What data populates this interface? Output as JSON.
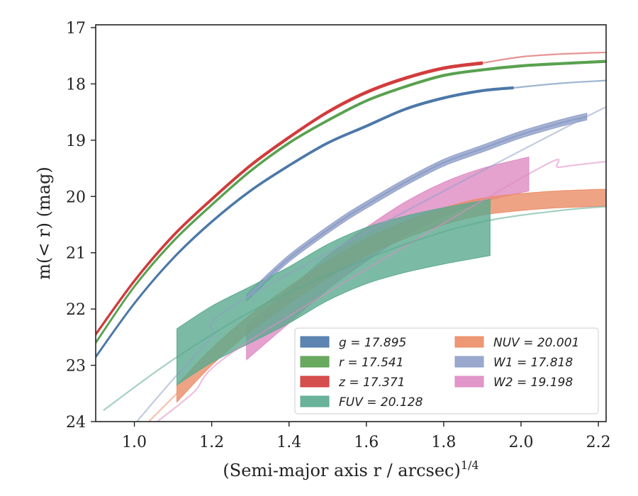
{
  "chart_data": {
    "type": "line",
    "xlabel": "(Semi-major axis r / arcsec)",
    "xlabel_exponent": "1/4",
    "ylabel": "m(< r) (mag)",
    "xlim": [
      0.9,
      2.22
    ],
    "ylim": [
      24,
      16.95
    ],
    "y_inverted": true,
    "x_ticks": [
      1.0,
      1.2,
      1.4,
      1.6,
      1.8,
      2.0,
      2.2
    ],
    "x_tick_labels": [
      "1.0",
      "1.2",
      "1.4",
      "1.6",
      "1.8",
      "2.0",
      "2.2"
    ],
    "y_ticks": [
      17,
      18,
      19,
      20,
      21,
      22,
      23,
      24
    ],
    "y_tick_labels": [
      "17",
      "18",
      "19",
      "20",
      "21",
      "22",
      "23",
      "24"
    ],
    "grid": false,
    "legend_placement": "lower-right",
    "series": [
      {
        "name": "g = 17.895",
        "legend_var": "g",
        "legend_value": "17.895",
        "color": "#4c78a8",
        "measured": [
          [
            0.9,
            22.85
          ],
          [
            1.0,
            21.9
          ],
          [
            1.1,
            21.1
          ],
          [
            1.2,
            20.45
          ],
          [
            1.3,
            19.9
          ],
          [
            1.4,
            19.45
          ],
          [
            1.5,
            19.05
          ],
          [
            1.6,
            18.75
          ],
          [
            1.7,
            18.45
          ],
          [
            1.8,
            18.25
          ],
          [
            1.9,
            18.12
          ],
          [
            1.98,
            18.07
          ]
        ],
        "model": [
          [
            1.98,
            18.07
          ],
          [
            2.1,
            17.99
          ],
          [
            2.22,
            17.94
          ]
        ],
        "halfwidth": 0.02
      },
      {
        "name": "r = 17.541",
        "legend_var": "r",
        "legend_value": "17.541",
        "color": "#59a14f",
        "measured": [
          [
            0.9,
            22.6
          ],
          [
            1.0,
            21.6
          ],
          [
            1.1,
            20.8
          ],
          [
            1.2,
            20.15
          ],
          [
            1.3,
            19.55
          ],
          [
            1.4,
            19.05
          ],
          [
            1.5,
            18.65
          ],
          [
            1.6,
            18.3
          ],
          [
            1.7,
            18.05
          ],
          [
            1.8,
            17.85
          ],
          [
            1.9,
            17.75
          ],
          [
            2.0,
            17.68
          ],
          [
            2.1,
            17.64
          ],
          [
            2.22,
            17.6
          ]
        ],
        "model": [
          [
            2.1,
            17.64
          ],
          [
            2.22,
            17.6
          ]
        ],
        "halfwidth": 0.02
      },
      {
        "name": "z = 17.371",
        "legend_var": "z",
        "legend_value": "17.371",
        "color": "#d13b3b",
        "measured": [
          [
            0.9,
            22.45
          ],
          [
            1.0,
            21.5
          ],
          [
            1.1,
            20.7
          ],
          [
            1.2,
            20.05
          ],
          [
            1.3,
            19.45
          ],
          [
            1.4,
            18.95
          ],
          [
            1.5,
            18.5
          ],
          [
            1.6,
            18.15
          ],
          [
            1.7,
            17.9
          ],
          [
            1.8,
            17.72
          ],
          [
            1.9,
            17.63
          ]
        ],
        "model": [
          [
            1.9,
            17.63
          ],
          [
            2.0,
            17.52
          ],
          [
            2.1,
            17.47
          ],
          [
            2.22,
            17.44
          ]
        ],
        "halfwidth": 0.025
      },
      {
        "name": "FUV = 20.128",
        "legend_var": "FUV",
        "legend_value": "20.128",
        "color": "#5aaa8f",
        "measured": [
          [
            1.11,
            22.85
          ],
          [
            1.2,
            22.45
          ],
          [
            1.3,
            22.1
          ],
          [
            1.4,
            21.75
          ],
          [
            1.5,
            21.35
          ],
          [
            1.6,
            21.05
          ],
          [
            1.7,
            20.85
          ],
          [
            1.8,
            20.7
          ],
          [
            1.92,
            20.55
          ]
        ],
        "model": [
          [
            0.92,
            23.8
          ],
          [
            1.1,
            22.9
          ],
          [
            1.3,
            22.05
          ],
          [
            1.5,
            21.4
          ],
          [
            1.7,
            20.85
          ],
          [
            1.9,
            20.45
          ],
          [
            2.1,
            20.25
          ],
          [
            2.22,
            20.18
          ]
        ],
        "halfwidth": 0.5
      },
      {
        "name": "NUV = 20.001",
        "legend_var": "NUV",
        "legend_value": "20.001",
        "color": "#eb8c66",
        "measured": [
          [
            1.11,
            23.5
          ],
          [
            1.2,
            22.85
          ],
          [
            1.3,
            22.25
          ],
          [
            1.4,
            21.75
          ],
          [
            1.5,
            21.3
          ],
          [
            1.6,
            20.9
          ],
          [
            1.7,
            20.6
          ],
          [
            1.8,
            20.35
          ],
          [
            1.9,
            20.18
          ],
          [
            2.0,
            20.1
          ],
          [
            2.1,
            20.05
          ],
          [
            2.22,
            20.02
          ]
        ],
        "model": [
          [
            1.03,
            24.05
          ],
          [
            1.11,
            23.5
          ]
        ],
        "halfwidth": 0.15
      },
      {
        "name": "W1 = 17.818",
        "legend_var": "W1",
        "legend_value": "17.818",
        "color": "#8f9fc8",
        "measured": [
          [
            1.29,
            21.8
          ],
          [
            1.4,
            21.1
          ],
          [
            1.53,
            20.45
          ],
          [
            1.6,
            20.15
          ],
          [
            1.7,
            19.75
          ],
          [
            1.8,
            19.4
          ],
          [
            1.9,
            19.15
          ],
          [
            2.0,
            18.9
          ],
          [
            2.1,
            18.7
          ],
          [
            2.17,
            18.58
          ]
        ],
        "model": [
          [
            1.0,
            24.05
          ],
          [
            1.1,
            23.25
          ],
          [
            1.2,
            22.5
          ],
          [
            1.29,
            21.8
          ],
          [
            2.17,
            18.58
          ],
          [
            2.22,
            18.52
          ]
        ],
        "halfwidth": 0.06
      },
      {
        "name": "W2 = 19.198",
        "legend_var": "W2",
        "legend_value": "19.198",
        "color": "#de8bc3",
        "measured": [
          [
            1.29,
            22.6
          ],
          [
            1.4,
            21.95
          ],
          [
            1.5,
            21.35
          ],
          [
            1.6,
            20.85
          ],
          [
            1.7,
            20.4
          ],
          [
            1.8,
            20.05
          ],
          [
            1.9,
            19.8
          ],
          [
            2.02,
            19.6
          ]
        ],
        "model": [
          [
            1.05,
            24.05
          ],
          [
            1.15,
            23.5
          ],
          [
            1.29,
            22.6
          ],
          [
            2.02,
            19.6
          ],
          [
            2.1,
            19.48
          ],
          [
            2.22,
            19.38
          ]
        ],
        "halfwidth": 0.3
      }
    ]
  }
}
